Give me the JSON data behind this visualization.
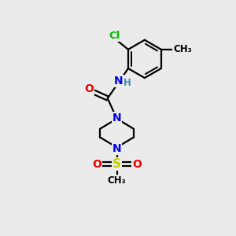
{
  "background_color": "#ebebeb",
  "atom_colors": {
    "C": "#000000",
    "N": "#0000ee",
    "O": "#ee0000",
    "S": "#cccc00",
    "Cl": "#00bb00",
    "H": "#4488aa"
  },
  "bond_color": "#000000",
  "bond_width": 1.6,
  "font_size_atom": 10,
  "font_size_small": 8.5
}
